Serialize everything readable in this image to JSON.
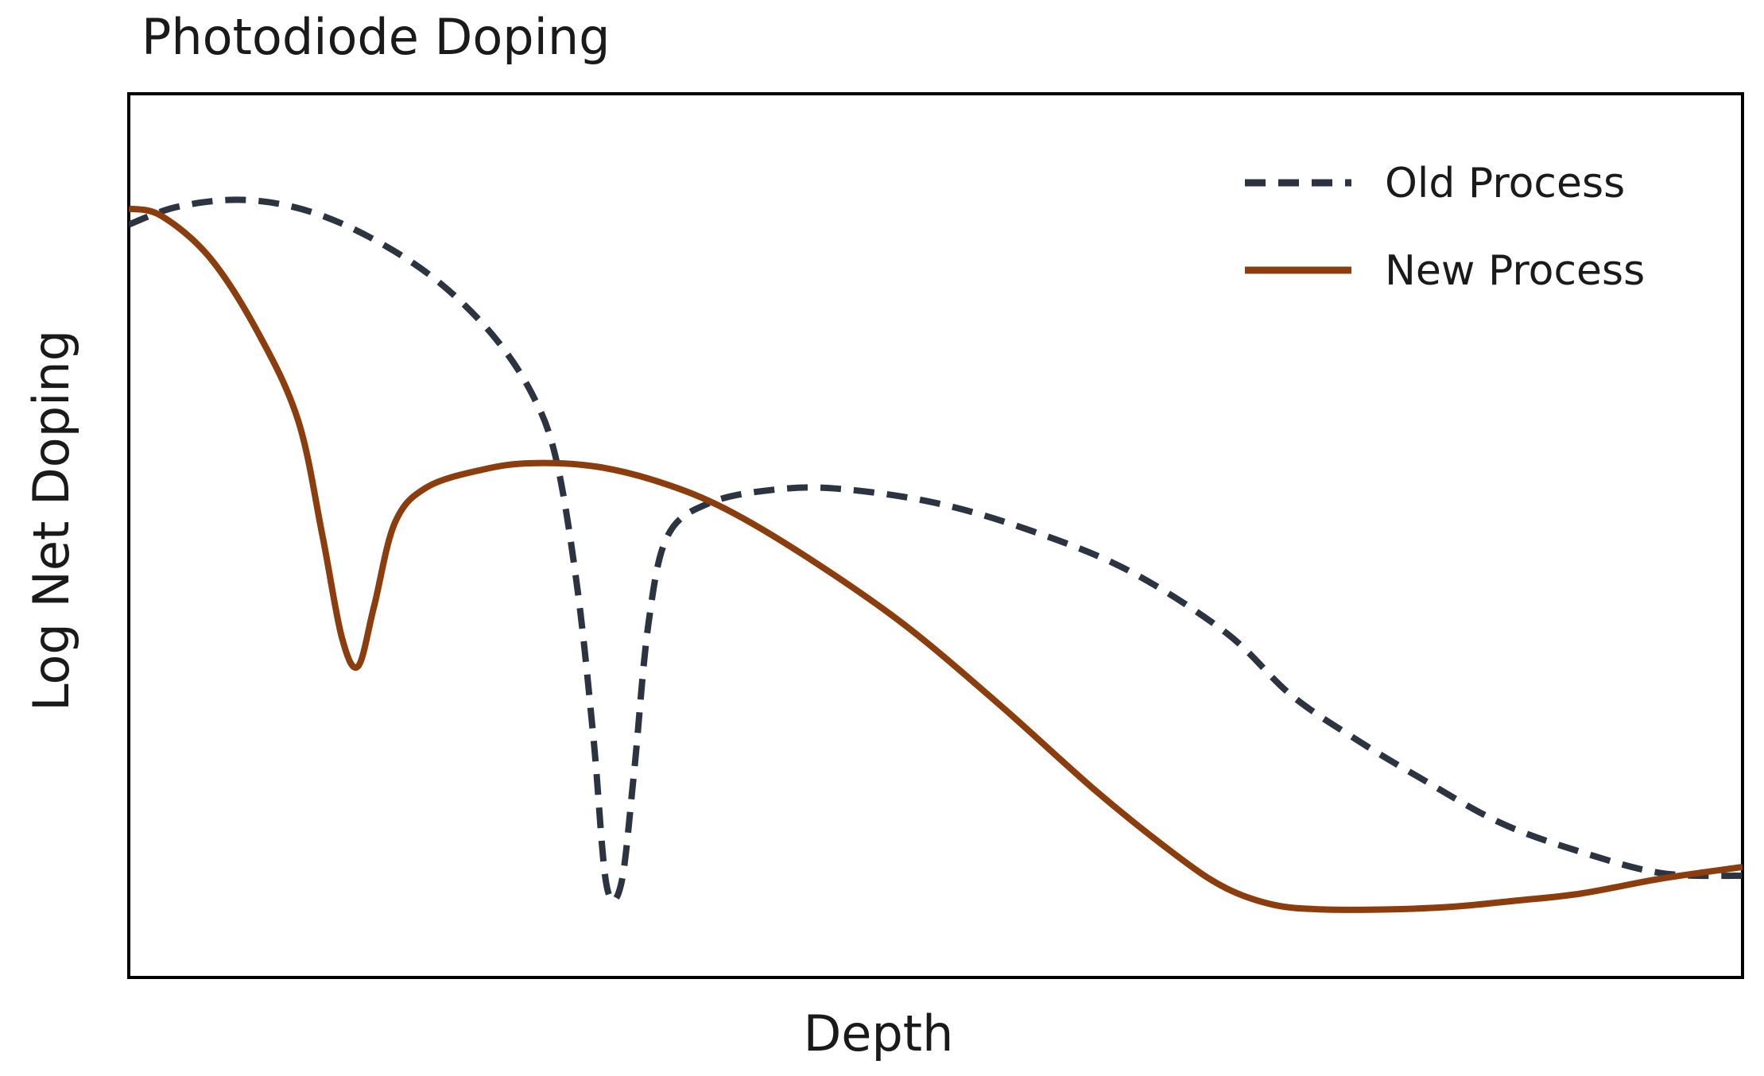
{
  "chart_data": {
    "type": "line",
    "title": "Photodiode Doping",
    "xlabel": "Depth",
    "ylabel": "Log Net Doping",
    "xlim": [
      0,
      1
    ],
    "ylim": [
      0,
      1
    ],
    "x_ticks_visible": false,
    "y_ticks_visible": false,
    "grid": false,
    "legend_position": "top-right",
    "series": [
      {
        "name": "Old Process",
        "color": "#2b3440",
        "style": "dashed",
        "points": [
          [
            0.0,
            0.852
          ],
          [
            0.03,
            0.872
          ],
          [
            0.07,
            0.88
          ],
          [
            0.11,
            0.868
          ],
          [
            0.15,
            0.837
          ],
          [
            0.19,
            0.79
          ],
          [
            0.225,
            0.728
          ],
          [
            0.25,
            0.66
          ],
          [
            0.265,
            0.585
          ],
          [
            0.278,
            0.44
          ],
          [
            0.288,
            0.27
          ],
          [
            0.296,
            0.105
          ],
          [
            0.305,
            0.105
          ],
          [
            0.313,
            0.23
          ],
          [
            0.322,
            0.4
          ],
          [
            0.334,
            0.5
          ],
          [
            0.36,
            0.537
          ],
          [
            0.4,
            0.552
          ],
          [
            0.44,
            0.553
          ],
          [
            0.5,
            0.537
          ],
          [
            0.56,
            0.505
          ],
          [
            0.62,
            0.46
          ],
          [
            0.68,
            0.39
          ],
          [
            0.72,
            0.32
          ],
          [
            0.76,
            0.27
          ],
          [
            0.8,
            0.226
          ],
          [
            0.85,
            0.175
          ],
          [
            0.9,
            0.142
          ],
          [
            0.95,
            0.118
          ],
          [
            1.0,
            0.115
          ]
        ]
      },
      {
        "name": "New Process",
        "color": "#8b3d0d",
        "style": "solid",
        "points": [
          [
            0.0,
            0.87
          ],
          [
            0.02,
            0.862
          ],
          [
            0.05,
            0.815
          ],
          [
            0.08,
            0.73
          ],
          [
            0.105,
            0.63
          ],
          [
            0.12,
            0.5
          ],
          [
            0.132,
            0.385
          ],
          [
            0.142,
            0.352
          ],
          [
            0.152,
            0.42
          ],
          [
            0.165,
            0.515
          ],
          [
            0.185,
            0.555
          ],
          [
            0.22,
            0.575
          ],
          [
            0.25,
            0.582
          ],
          [
            0.29,
            0.578
          ],
          [
            0.33,
            0.56
          ],
          [
            0.37,
            0.53
          ],
          [
            0.42,
            0.476
          ],
          [
            0.48,
            0.4
          ],
          [
            0.54,
            0.308
          ],
          [
            0.6,
            0.21
          ],
          [
            0.65,
            0.137
          ],
          [
            0.68,
            0.101
          ],
          [
            0.71,
            0.082
          ],
          [
            0.74,
            0.077
          ],
          [
            0.78,
            0.077
          ],
          [
            0.82,
            0.08
          ],
          [
            0.86,
            0.087
          ],
          [
            0.9,
            0.095
          ],
          [
            0.95,
            0.112
          ],
          [
            1.0,
            0.125
          ]
        ]
      }
    ]
  }
}
